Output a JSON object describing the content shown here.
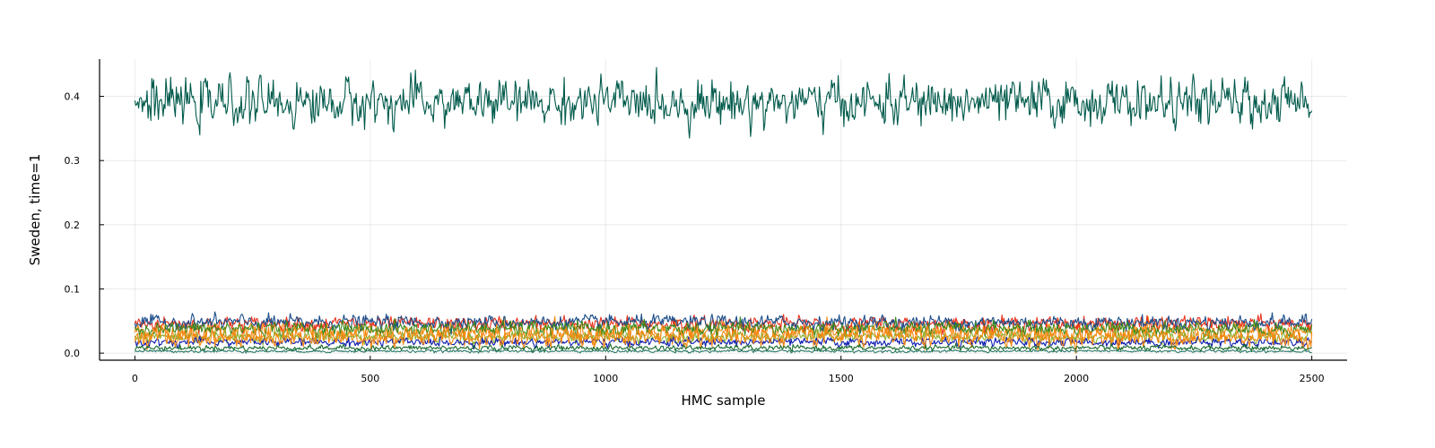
{
  "chart_data": {
    "type": "line",
    "title": "",
    "xlabel": "HMC sample",
    "ylabel": "Sweden, time=1",
    "xlim": [
      -75,
      2575
    ],
    "ylim": [
      -0.011,
      0.458
    ],
    "x_ticks": [
      0,
      500,
      1000,
      1500,
      2000,
      2500
    ],
    "y_ticks": [
      0.0,
      0.1,
      0.2,
      0.3,
      0.4
    ],
    "y_tick_labels": [
      "0.0",
      "0.1",
      "0.2",
      "0.3",
      "0.4"
    ],
    "x_tick_labels": [
      "0",
      "500",
      "1000",
      "1500",
      "2000",
      "2500"
    ],
    "grid": true,
    "legend": "none",
    "n_samples": 2500,
    "series": [
      {
        "color": "#005a4b",
        "mean": 0.39,
        "spread": 0.016,
        "max": 0.445,
        "min": 0.335
      },
      {
        "color": "#f4880f",
        "mean": 0.034,
        "spread": 0.007,
        "max": 0.077,
        "min": 0.0
      },
      {
        "color": "#e8321e",
        "mean": 0.046,
        "spread": 0.005,
        "max": 0.075,
        "min": 0.0
      },
      {
        "color": "#1c4e8a",
        "mean": 0.048,
        "spread": 0.005,
        "max": 0.08,
        "min": 0.0
      },
      {
        "color": "#3d8a1c",
        "mean": 0.038,
        "spread": 0.005,
        "max": 0.072,
        "min": 0.0
      },
      {
        "color": "#8fb032",
        "mean": 0.025,
        "spread": 0.004,
        "max": 0.07,
        "min": 0.0
      },
      {
        "color": "#0d1cb0",
        "mean": 0.017,
        "spread": 0.003,
        "max": 0.03,
        "min": 0.0
      },
      {
        "color": "#f4880f",
        "mean": 0.025,
        "spread": 0.007,
        "max": 0.06,
        "min": 0.0
      },
      {
        "color": "#1a6b2e",
        "mean": 0.008,
        "spread": 0.002,
        "max": 0.02,
        "min": 0.0
      },
      {
        "color": "#2d7a6a",
        "mean": 0.003,
        "spread": 0.001,
        "max": 0.01,
        "min": 0.0
      }
    ]
  }
}
